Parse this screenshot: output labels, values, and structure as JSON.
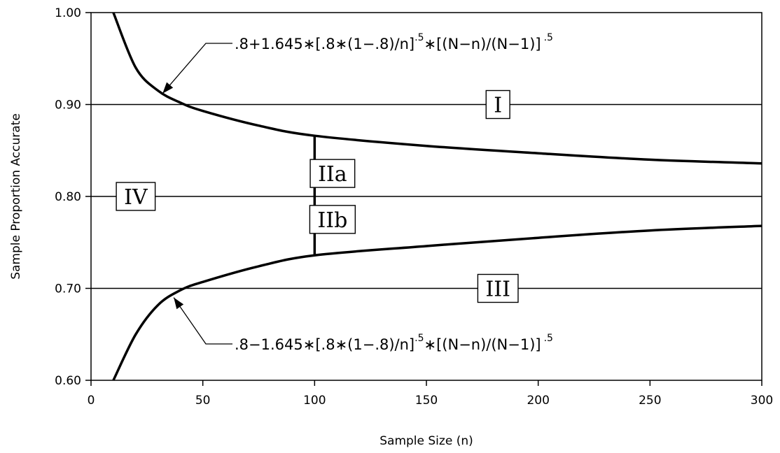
{
  "chart_data": {
    "type": "line",
    "xlabel": "Sample Size (n)",
    "ylabel": "Sample Proportion Accurate",
    "xlim": [
      0,
      300
    ],
    "ylim": [
      0.6,
      1.0
    ],
    "x_ticks": [
      "0",
      "50",
      "100",
      "150",
      "200",
      "250",
      "300"
    ],
    "y_ticks": [
      "0.60",
      "0.70",
      "0.80",
      "0.90",
      "1.00"
    ],
    "horizontal_gridlines": [
      0.7,
      0.8,
      0.9
    ],
    "grid": false,
    "upper_curve": {
      "formula_main": ".8+1.645∗[.8∗(1−.8)/n]",
      "formula_exp1": ".5",
      "formula_mid": "∗[(N−n)/(N−1)]",
      "formula_exp2": ".5",
      "x": [
        10,
        20,
        30,
        40,
        50,
        75,
        100,
        150,
        200,
        250,
        300
      ],
      "y": [
        1.0,
        0.94,
        0.915,
        0.902,
        0.893,
        0.877,
        0.866,
        0.855,
        0.847,
        0.84,
        0.836
      ]
    },
    "lower_curve": {
      "formula_main": ".8−1.645∗[.8∗(1−.8)/n]",
      "formula_exp1": ".5",
      "formula_mid": "∗[(N−n)/(N−1)]",
      "formula_exp2": ".5",
      "x": [
        10,
        20,
        30,
        40,
        50,
        75,
        100,
        150,
        200,
        250,
        300
      ],
      "y": [
        0.6,
        0.65,
        0.682,
        0.698,
        0.707,
        0.724,
        0.736,
        0.746,
        0.755,
        0.763,
        0.768
      ]
    },
    "divider": {
      "x": 100,
      "y_range": [
        0.736,
        0.866
      ]
    },
    "regions": [
      {
        "label": "I",
        "x": 182,
        "y": 0.9
      },
      {
        "label": "IIa",
        "x": 108,
        "y": 0.825
      },
      {
        "label": "IIb",
        "x": 108,
        "y": 0.775
      },
      {
        "label": "III",
        "x": 182,
        "y": 0.7
      },
      {
        "label": "IV",
        "x": 20,
        "y": 0.8
      }
    ]
  }
}
